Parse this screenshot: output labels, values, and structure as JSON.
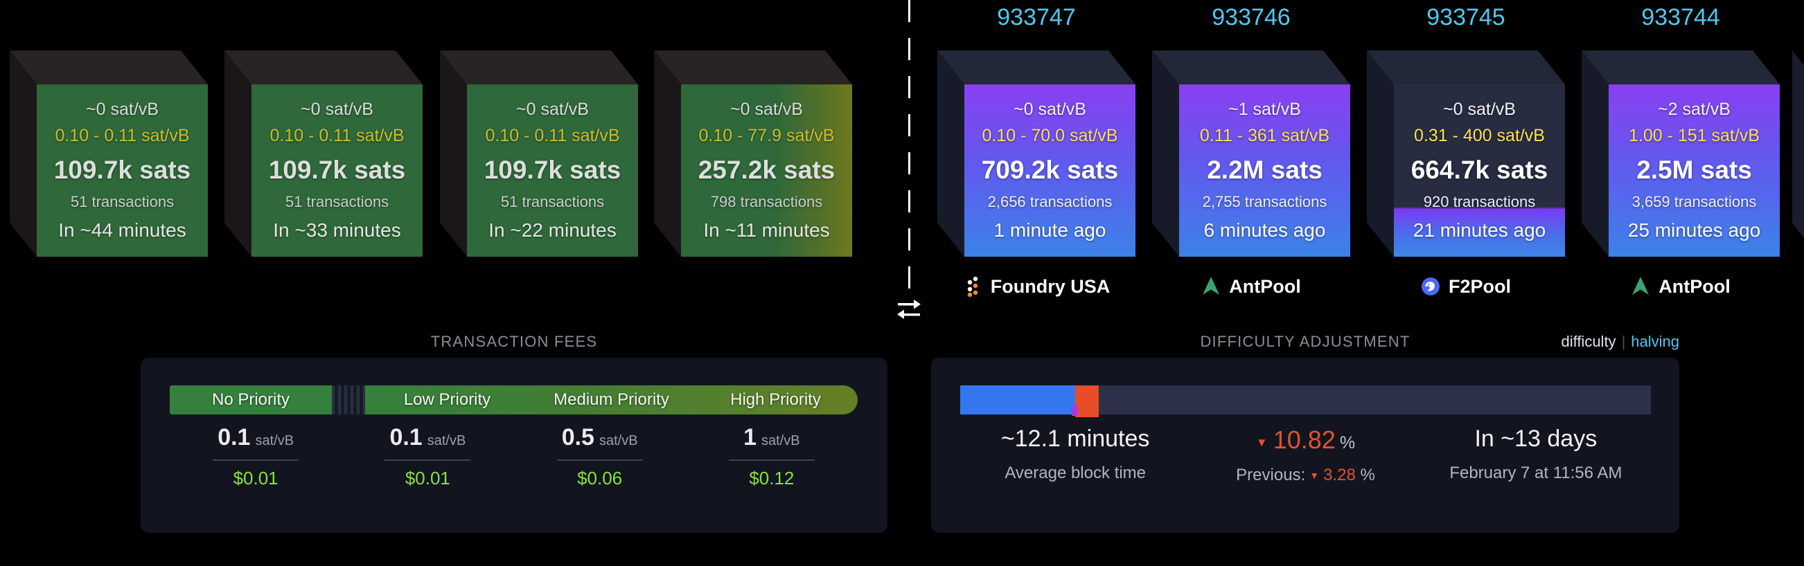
{
  "mempool_blocks": [
    {
      "median_fee": "~0 sat/vB",
      "fee_range": "0.10 - 0.11 sat/vB",
      "total_fees": "109.7k sats",
      "tx_count": "51 transactions",
      "eta": "In ~44 minutes"
    },
    {
      "median_fee": "~0 sat/vB",
      "fee_range": "0.10 - 0.11 sat/vB",
      "total_fees": "109.7k sats",
      "tx_count": "51 transactions",
      "eta": "In ~33 minutes"
    },
    {
      "median_fee": "~0 sat/vB",
      "fee_range": "0.10 - 0.11 sat/vB",
      "total_fees": "109.7k sats",
      "tx_count": "51 transactions",
      "eta": "In ~22 minutes"
    },
    {
      "median_fee": "~0 sat/vB",
      "fee_range": "0.10 - 77.9 sat/vB",
      "total_fees": "257.2k sats",
      "tx_count": "798 transactions",
      "eta": "In ~11 minutes"
    }
  ],
  "blocks": [
    {
      "height": "933747",
      "median_fee": "~0 sat/vB",
      "fee_range": "0.10 - 70.0 sat/vB",
      "total_fees": "709.2k sats",
      "tx_count": "2,656 transactions",
      "mined_ago": "1 minute ago",
      "pool": {
        "name": "Foundry USA",
        "icon": "foundry-icon"
      }
    },
    {
      "height": "933746",
      "median_fee": "~1 sat/vB",
      "fee_range": "0.11 - 361 sat/vB",
      "total_fees": "2.2M sats",
      "tx_count": "2,755 transactions",
      "mined_ago": "6 minutes ago",
      "pool": {
        "name": "AntPool",
        "icon": "antpool-icon"
      }
    },
    {
      "height": "933745",
      "median_fee": "~0 sat/vB",
      "fee_range": "0.31 - 400 sat/vB",
      "total_fees": "664.7k sats",
      "tx_count": "920 transactions",
      "mined_ago": "21 minutes ago",
      "pool": {
        "name": "F2Pool",
        "icon": "f2pool-icon"
      }
    },
    {
      "height": "933744",
      "median_fee": "~2 sat/vB",
      "fee_range": "1.00 - 151 sat/vB",
      "total_fees": "2.5M sats",
      "tx_count": "3,659 transactions",
      "mined_ago": "25 minutes ago",
      "pool": {
        "name": "AntPool",
        "icon": "antpool-icon"
      }
    }
  ],
  "fees": {
    "title": "TRANSACTION FEES",
    "unit": "sat/vB",
    "priorities": [
      {
        "label": "No Priority",
        "fee": "0.1",
        "unit": "sat/vB",
        "usd": "$0.01"
      },
      {
        "label": "Low Priority",
        "fee": "0.1",
        "unit": "sat/vB",
        "usd": "$0.01"
      },
      {
        "label": "Medium Priority",
        "fee": "0.5",
        "unit": "sat/vB",
        "usd": "$0.06"
      },
      {
        "label": "High Priority",
        "fee": "1",
        "unit": "sat/vB",
        "usd": "$0.12"
      }
    ]
  },
  "difficulty": {
    "title": "DIFFICULTY ADJUSTMENT",
    "toggle": {
      "left": "difficulty",
      "sep": "|",
      "right": "halving"
    },
    "progress": {
      "blue_pct": 16.6,
      "orange_pct": 3.5
    },
    "avg_block_time": {
      "value": "~12.1 minutes",
      "label": "Average block time"
    },
    "change": {
      "value": "10.82",
      "unit": "%"
    },
    "previous": {
      "label": "Previous:",
      "value": "3.28",
      "unit": "%"
    },
    "retarget": {
      "value": "In ~13 days",
      "date": "February 7 at 11:56 AM"
    }
  },
  "colors": {
    "height_link": "#4ec9f0",
    "halving_link": "#4ec9f0",
    "fee_usd_green": "#86e23d",
    "negative_red": "#e2532e",
    "bar_blue": "#3477f0",
    "bar_orange": "#e64d28"
  },
  "icons": {
    "down_triangle": "▼"
  }
}
